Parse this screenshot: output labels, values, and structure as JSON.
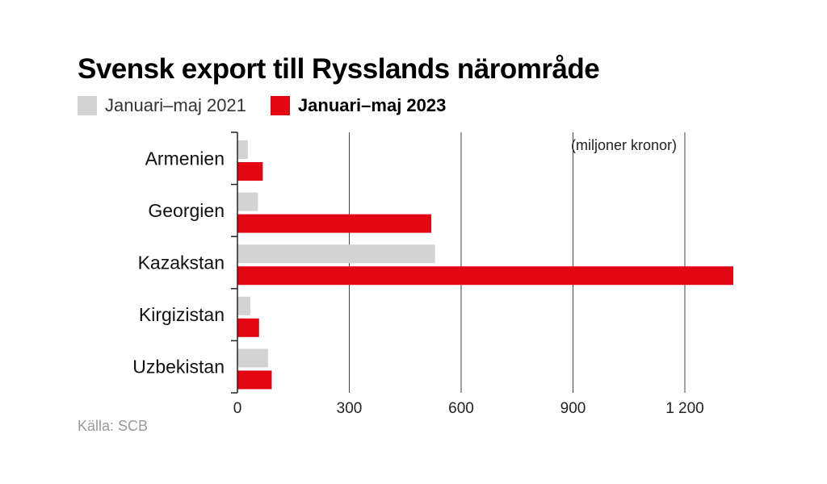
{
  "chart_data": {
    "type": "bar",
    "orientation": "horizontal",
    "title": "Svensk export till Rysslands närområde",
    "unit_note": "(miljoner kronor)",
    "source": "Källa: SCB",
    "categories": [
      "Armenien",
      "Georgien",
      "Kazakstan",
      "Kirgizistan",
      "Uzbekistan"
    ],
    "series": [
      {
        "name": "Januari–maj 2021",
        "color": "#d3d3d3",
        "values": [
          28,
          55,
          530,
          35,
          82
        ]
      },
      {
        "name": "Januari–maj 2023",
        "color": "#e30613",
        "values": [
          68,
          520,
          1330,
          58,
          92
        ]
      }
    ],
    "xlim": [
      0,
      1330
    ],
    "xticks": [
      0,
      300,
      600,
      900,
      1200
    ],
    "xtick_labels": [
      "0",
      "300",
      "600",
      "900",
      "1 200"
    ],
    "grid": true,
    "legend_placement": "top-left"
  }
}
